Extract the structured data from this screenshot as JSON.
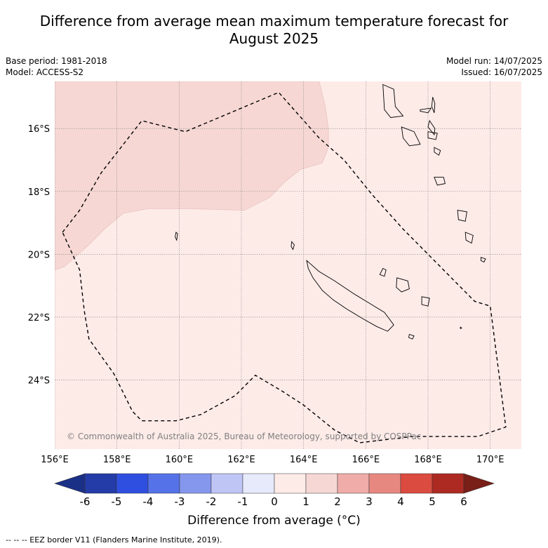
{
  "title_line1": "Difference from average mean maximum temperature forecast for",
  "title_line2": "August 2025",
  "meta_left": {
    "base_period": "Base period: 1981-2018",
    "model": "Model: ACCESS-S2"
  },
  "meta_right": {
    "model_run": "Model run: 14/07/2025",
    "issued": "Issued: 16/07/2025"
  },
  "map": {
    "lon_range": [
      156,
      171
    ],
    "lat_range": [
      -26.2,
      -14.5
    ],
    "lon_ticks": [
      "156°E",
      "158°E",
      "160°E",
      "162°E",
      "164°E",
      "166°E",
      "168°E",
      "170°E"
    ],
    "lon_tick_values": [
      156,
      158,
      160,
      162,
      164,
      166,
      168,
      170
    ],
    "lat_ticks": [
      "16°S",
      "18°S",
      "20°S",
      "22°S",
      "24°S"
    ],
    "lat_tick_values": [
      -16,
      -18,
      -20,
      -22,
      -24
    ],
    "grid": true,
    "background_category": "0 to 1",
    "background_color": "#fdebe8",
    "warm_region_category": "1 to 2",
    "warm_region_color": "#f6d7d4",
    "warm_region_boundary": [
      [
        156,
        -14.5
      ],
      [
        164.5,
        -14.5
      ],
      [
        164.7,
        -15.3
      ],
      [
        164.8,
        -16
      ],
      [
        164.8,
        -16.6
      ],
      [
        164.6,
        -17.1
      ],
      [
        163.9,
        -17.3
      ],
      [
        163.4,
        -17.7
      ],
      [
        162.9,
        -18.2
      ],
      [
        162.1,
        -18.6
      ],
      [
        160.3,
        -18.55
      ],
      [
        159,
        -18.55
      ],
      [
        158.2,
        -18.7
      ],
      [
        157.6,
        -19.2
      ],
      [
        157.1,
        -19.7
      ],
      [
        156.3,
        -20.4
      ],
      [
        156,
        -20.5
      ]
    ],
    "eez_border": [
      [
        156.25,
        -19.3
      ],
      [
        156.8,
        -18.6
      ],
      [
        157.5,
        -17.4
      ],
      [
        158.8,
        -15.75
      ],
      [
        160.2,
        -16.1
      ],
      [
        163.2,
        -14.85
      ],
      [
        164.5,
        -16.3
      ],
      [
        165.3,
        -17
      ],
      [
        166.2,
        -18.1
      ],
      [
        167.2,
        -19.2
      ],
      [
        168,
        -20
      ],
      [
        169.0,
        -21.0
      ],
      [
        169.5,
        -21.5
      ],
      [
        170.0,
        -21.65
      ],
      [
        170.5,
        -25.5
      ],
      [
        169.6,
        -25.8
      ],
      [
        167.5,
        -25.8
      ],
      [
        165.8,
        -26.0
      ],
      [
        165.0,
        -25.6
      ],
      [
        164,
        -24.8
      ],
      [
        163.3,
        -24.35
      ],
      [
        162.45,
        -23.85
      ],
      [
        161.8,
        -24.5
      ],
      [
        160.7,
        -25.1
      ],
      [
        159.9,
        -25.3
      ],
      [
        158.8,
        -25.3
      ],
      [
        158.5,
        -25.0
      ],
      [
        157.9,
        -23.8
      ],
      [
        157.1,
        -22.7
      ],
      [
        156.95,
        -21.8
      ],
      [
        156.8,
        -20.5
      ],
      [
        156.25,
        -19.3
      ]
    ],
    "islands": {
      "new_caledonia": [
        [
          164.1,
          -20.2
        ],
        [
          164.5,
          -20.55
        ],
        [
          165.0,
          -20.85
        ],
        [
          165.6,
          -21.25
        ],
        [
          166.1,
          -21.55
        ],
        [
          166.6,
          -21.85
        ],
        [
          166.9,
          -22.25
        ],
        [
          166.7,
          -22.45
        ],
        [
          166.35,
          -22.3
        ],
        [
          165.9,
          -22.05
        ],
        [
          165.4,
          -21.75
        ],
        [
          164.95,
          -21.45
        ],
        [
          164.6,
          -21.15
        ],
        [
          164.3,
          -20.75
        ],
        [
          164.15,
          -20.45
        ],
        [
          164.1,
          -20.2
        ]
      ],
      "isle_of_pines": [
        [
          167.4,
          -22.55
        ],
        [
          167.55,
          -22.6
        ],
        [
          167.5,
          -22.7
        ],
        [
          167.38,
          -22.65
        ],
        [
          167.4,
          -22.55
        ]
      ],
      "ouvea": [
        [
          166.55,
          -20.45
        ],
        [
          166.65,
          -20.5
        ],
        [
          166.6,
          -20.7
        ],
        [
          166.45,
          -20.65
        ],
        [
          166.55,
          -20.45
        ]
      ],
      "lifou": [
        [
          167.0,
          -20.75
        ],
        [
          167.35,
          -20.85
        ],
        [
          167.4,
          -21.1
        ],
        [
          167.15,
          -21.2
        ],
        [
          166.98,
          -21.05
        ],
        [
          167.0,
          -20.75
        ]
      ],
      "mare": [
        [
          167.8,
          -21.35
        ],
        [
          168.05,
          -21.4
        ],
        [
          168.0,
          -21.65
        ],
        [
          167.8,
          -21.6
        ],
        [
          167.8,
          -21.35
        ]
      ],
      "belep": [
        [
          163.62,
          -19.6
        ],
        [
          163.7,
          -19.7
        ],
        [
          163.66,
          -19.85
        ],
        [
          163.6,
          -19.75
        ],
        [
          163.62,
          -19.6
        ]
      ],
      "chesterfield": [
        [
          159.9,
          -19.3
        ],
        [
          159.95,
          -19.35
        ],
        [
          159.92,
          -19.55
        ],
        [
          159.87,
          -19.45
        ],
        [
          159.9,
          -19.3
        ]
      ],
      "espiritu_santo": [
        [
          166.55,
          -14.6
        ],
        [
          166.9,
          -14.75
        ],
        [
          166.95,
          -15.3
        ],
        [
          167.2,
          -15.6
        ],
        [
          166.8,
          -15.65
        ],
        [
          166.6,
          -15.4
        ],
        [
          166.55,
          -14.6
        ]
      ],
      "malekula": [
        [
          167.15,
          -15.95
        ],
        [
          167.55,
          -16.1
        ],
        [
          167.75,
          -16.5
        ],
        [
          167.4,
          -16.55
        ],
        [
          167.2,
          -16.3
        ],
        [
          167.15,
          -15.95
        ]
      ],
      "maewo": [
        [
          168.15,
          -15.0
        ],
        [
          168.22,
          -15.2
        ],
        [
          168.2,
          -15.5
        ],
        [
          168.12,
          -15.3
        ],
        [
          168.15,
          -15.0
        ]
      ],
      "pentecost": [
        [
          168.05,
          -15.75
        ],
        [
          168.22,
          -16.0
        ],
        [
          168.2,
          -16.2
        ],
        [
          168.0,
          -15.95
        ],
        [
          168.05,
          -15.75
        ]
      ],
      "ambae": [
        [
          167.75,
          -15.4
        ],
        [
          168.1,
          -15.35
        ],
        [
          168.0,
          -15.5
        ],
        [
          167.75,
          -15.45
        ],
        [
          167.75,
          -15.4
        ]
      ],
      "ambrym": [
        [
          168.0,
          -16.1
        ],
        [
          168.3,
          -16.15
        ],
        [
          168.25,
          -16.35
        ],
        [
          168.0,
          -16.3
        ],
        [
          168.0,
          -16.1
        ]
      ],
      "epi": [
        [
          168.2,
          -16.6
        ],
        [
          168.4,
          -16.7
        ],
        [
          168.35,
          -16.85
        ],
        [
          168.2,
          -16.75
        ],
        [
          168.2,
          -16.6
        ]
      ],
      "efate": [
        [
          168.2,
          -17.55
        ],
        [
          168.5,
          -17.55
        ],
        [
          168.55,
          -17.75
        ],
        [
          168.3,
          -17.8
        ],
        [
          168.2,
          -17.55
        ]
      ],
      "erromango": [
        [
          168.95,
          -18.6
        ],
        [
          169.25,
          -18.65
        ],
        [
          169.2,
          -18.95
        ],
        [
          168.98,
          -18.9
        ],
        [
          168.95,
          -18.6
        ]
      ],
      "tanna": [
        [
          169.2,
          -19.3
        ],
        [
          169.45,
          -19.4
        ],
        [
          169.4,
          -19.65
        ],
        [
          169.22,
          -19.55
        ],
        [
          169.2,
          -19.3
        ]
      ],
      "aneityum": [
        [
          169.7,
          -20.1
        ],
        [
          169.85,
          -20.15
        ],
        [
          169.8,
          -20.25
        ],
        [
          169.7,
          -20.2
        ],
        [
          169.7,
          -20.1
        ]
      ],
      "matthew": [
        [
          169.05,
          -22.32
        ],
        [
          169.08,
          -22.35
        ],
        [
          169.05,
          -22.37
        ],
        [
          169.03,
          -22.34
        ],
        [
          169.05,
          -22.32
        ]
      ]
    }
  },
  "credit": "© Commonwealth of Australia 2025, Bureau of Meteorology, supported by COSPPac",
  "colorbar": {
    "ticks": [
      "-6",
      "-5",
      "-4",
      "-3",
      "-2",
      "-1",
      "0",
      "1",
      "2",
      "3",
      "4",
      "5",
      "6"
    ],
    "colors": [
      "#233ca8",
      "#2f4fe0",
      "#5572e8",
      "#8597ed",
      "#bfc6f6",
      "#e6eafb",
      "#fdebe8",
      "#f6d7d4",
      "#efaca8",
      "#e78880",
      "#db4b40",
      "#ad2a22"
    ],
    "under_color": "#1a2f86",
    "over_color": "#7a1e18",
    "label": "Difference from average (°C)"
  },
  "legend_note": "--  --  -- EEZ border V11 (Flanders Marine Institute, 2019)."
}
